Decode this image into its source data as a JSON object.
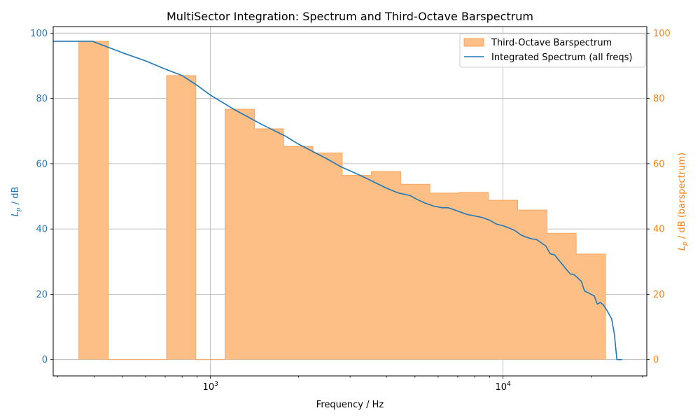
{
  "chart_data": {
    "type": "area",
    "title": "MultiSector Integration: Spectrum and Third-Octave Barspectrum",
    "xlabel": "Frequency / Hz",
    "ylabel_left": "L_p / dB",
    "ylabel_right": "L_p / dB (barspectrum)",
    "xscale": "log",
    "xlim": [
      290,
      31000
    ],
    "ylim": [
      -5,
      102
    ],
    "y2lim": [
      -5,
      102
    ],
    "xticks_major": [
      {
        "value": 1000,
        "base": "10",
        "exp": "3"
      },
      {
        "value": 10000,
        "base": "10",
        "exp": "4"
      }
    ],
    "yticks": [
      "0",
      "20",
      "40",
      "60",
      "80",
      "100"
    ],
    "y2ticks": [
      "0",
      "20",
      "40",
      "60",
      "80",
      "100"
    ],
    "grid": true,
    "legend_position": "top-right",
    "colors": {
      "spectrum": "#1f77b4",
      "bars": "#ff7f0e",
      "bar_fill": "#fdbf86",
      "bar_edge": "#f9a55a"
    },
    "series": [
      {
        "name": "Third-Octave Barspectrum",
        "kind": "bars",
        "bands": [
          {
            "f_low": 355,
            "f_high": 447,
            "value": 97.5
          },
          {
            "f_low": 447,
            "f_high": 708,
            "value": 0
          },
          {
            "f_low": 708,
            "f_high": 891,
            "value": 87.0
          },
          {
            "f_low": 891,
            "f_high": 1122,
            "value": 0
          },
          {
            "f_low": 1122,
            "f_high": 1413,
            "value": 76.7
          },
          {
            "f_low": 1413,
            "f_high": 1778,
            "value": 70.7
          },
          {
            "f_low": 1778,
            "f_high": 2239,
            "value": 65.3
          },
          {
            "f_low": 2239,
            "f_high": 2818,
            "value": 63.3
          },
          {
            "f_low": 2818,
            "f_high": 3548,
            "value": 56.4
          },
          {
            "f_low": 3548,
            "f_high": 4467,
            "value": 57.6
          },
          {
            "f_low": 4467,
            "f_high": 5623,
            "value": 53.7
          },
          {
            "f_low": 5623,
            "f_high": 7079,
            "value": 51.0
          },
          {
            "f_low": 7079,
            "f_high": 8913,
            "value": 51.2
          },
          {
            "f_low": 8913,
            "f_high": 11220,
            "value": 48.8
          },
          {
            "f_low": 11220,
            "f_high": 14125,
            "value": 45.8
          },
          {
            "f_low": 14125,
            "f_high": 17783,
            "value": 38.7
          },
          {
            "f_low": 17783,
            "f_high": 22387,
            "value": 32.3
          }
        ]
      },
      {
        "name": "Integrated Spectrum (all freqs)",
        "kind": "line",
        "x": [
          290,
          395,
          500,
          600,
          700,
          800,
          900,
          1000,
          1200,
          1500,
          1800,
          2000,
          2500,
          2800,
          3200,
          3600,
          4000,
          4400,
          4800,
          5100,
          5400,
          5800,
          6200,
          6500,
          7000,
          7500,
          8000,
          8500,
          9000,
          9500,
          10000,
          10500,
          11000,
          11500,
          12000,
          12500,
          13000,
          13500,
          14000,
          14500,
          15000,
          15500,
          16000,
          16500,
          17000,
          17500,
          18000,
          18500,
          19000,
          19500,
          20000,
          20500,
          21000,
          21500,
          22000,
          22500,
          23000,
          23500,
          24000,
          24500,
          25000,
          25500
        ],
        "y": [
          97.5,
          97.5,
          94.0,
          91.5,
          89.0,
          87.0,
          84.0,
          81.0,
          76.7,
          72.0,
          68.5,
          66.0,
          61.5,
          59.0,
          56.7,
          54.5,
          52.5,
          51.0,
          50.3,
          49.0,
          48.0,
          47.0,
          46.5,
          46.5,
          45.5,
          44.5,
          44.0,
          43.5,
          42.7,
          41.5,
          41.0,
          40.3,
          39.5,
          38.2,
          37.5,
          37.0,
          36.8,
          35.8,
          34.8,
          32.4,
          32.1,
          30.5,
          29.0,
          27.5,
          26.2,
          26.0,
          25.0,
          24.0,
          21.0,
          20.5,
          20.0,
          19.5,
          17.0,
          17.5,
          16.8,
          15.5,
          14.0,
          12.5,
          8.0,
          0.0,
          0.0,
          0.0
        ]
      }
    ]
  }
}
